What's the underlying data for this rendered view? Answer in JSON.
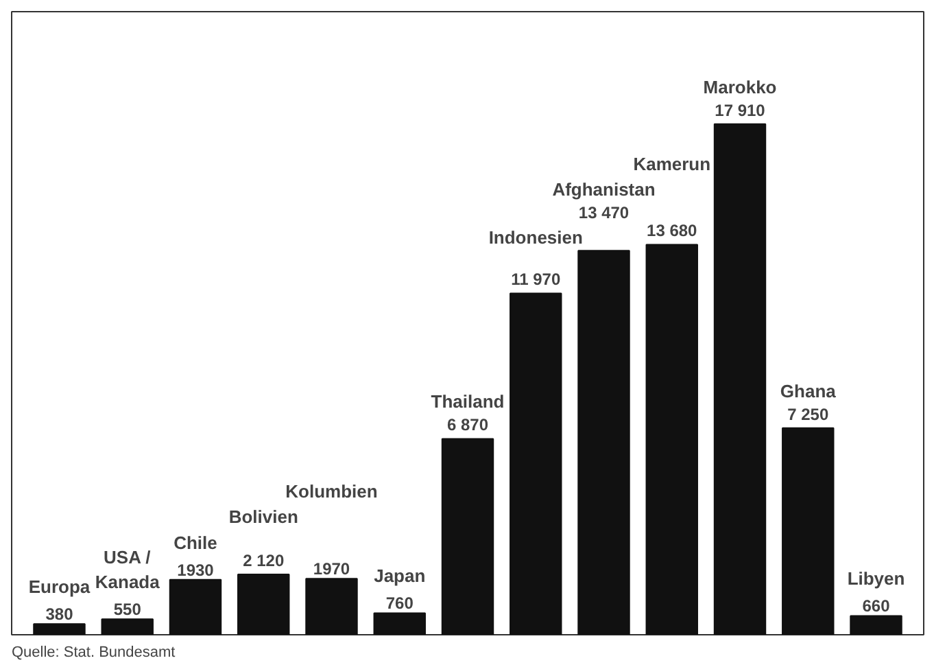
{
  "chart_data": {
    "type": "bar",
    "categories": [
      "Europa",
      "USA / Kanada",
      "Chile",
      "Bolivien",
      "Kolumbien",
      "Japan",
      "Thailand",
      "Indonesien",
      "Afghanistan",
      "Kamerun",
      "Marokko",
      "Ghana",
      "Libyen"
    ],
    "values": [
      380,
      550,
      1930,
      2120,
      1970,
      760,
      6870,
      11970,
      13470,
      13680,
      17910,
      7250,
      660
    ],
    "value_labels": [
      "380",
      "550",
      "1930",
      "2 120",
      "1970",
      "760",
      "6 870",
      "11 970",
      "13 470",
      "13 680",
      "17 910",
      "7 250",
      "660"
    ],
    "color": "#111111",
    "annotations": [
      "Quelle: Stat. Bundesamt"
    ]
  }
}
